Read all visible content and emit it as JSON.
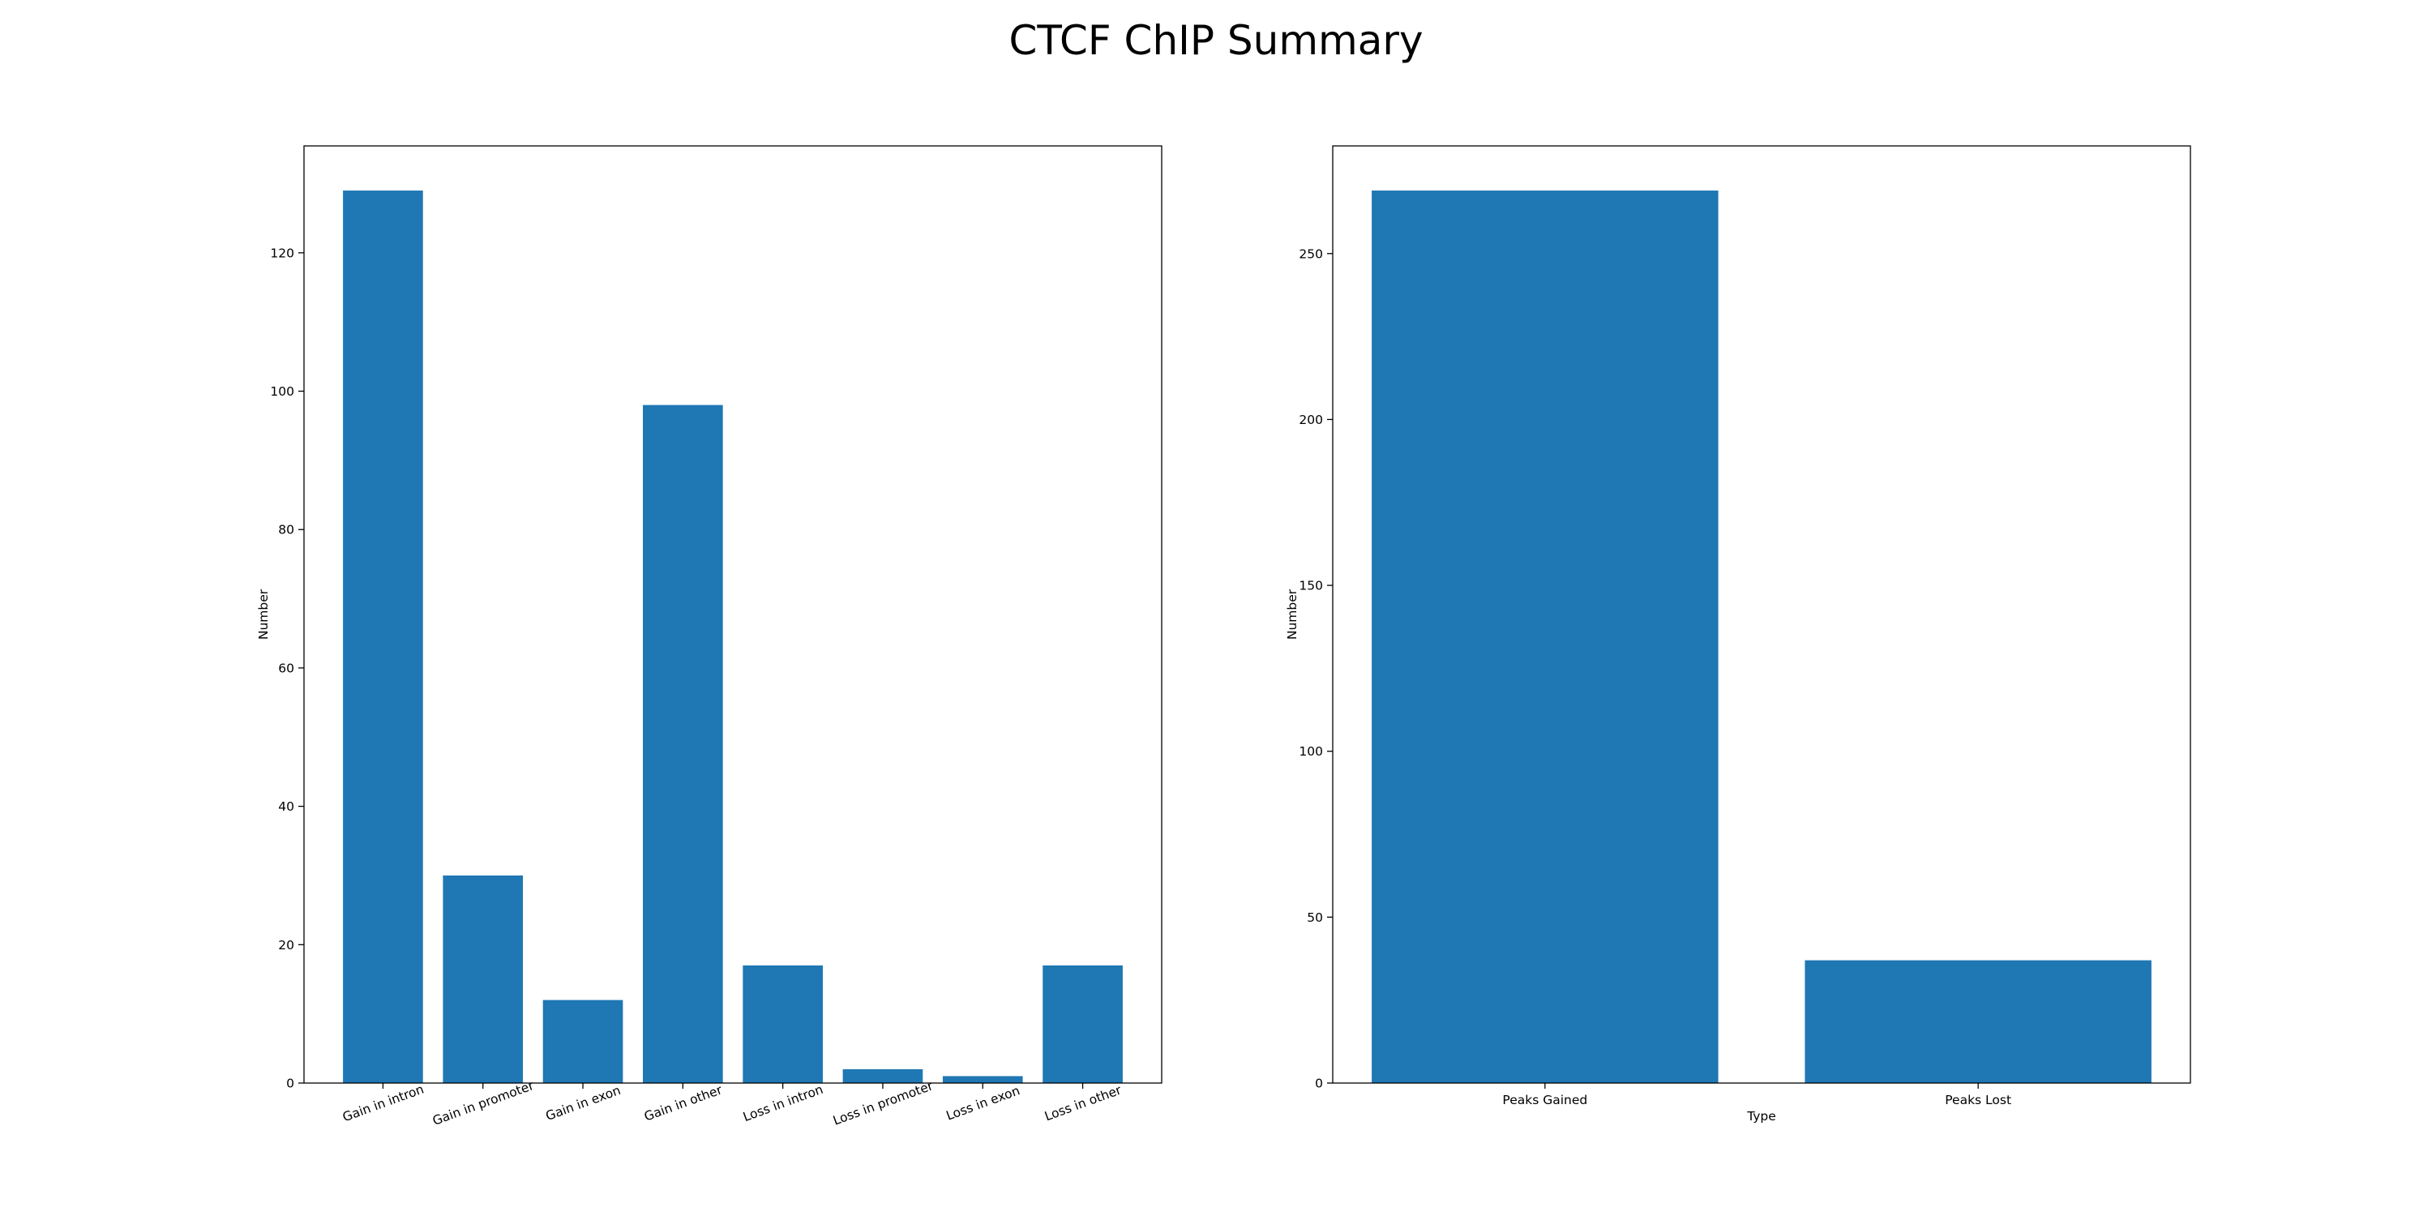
{
  "figure": {
    "title": "CTCF ChIP Summary",
    "bar_color": "#1f77b4"
  },
  "chart_data": [
    {
      "type": "bar",
      "title": "",
      "xlabel": "",
      "ylabel": "Number",
      "categories": [
        "Gain in intron",
        "Gain in promoter",
        "Gain in exon",
        "Gain in other",
        "Loss in intron",
        "Loss in promoter",
        "Loss in exon",
        "Loss in other"
      ],
      "values": [
        129,
        30,
        12,
        98,
        17,
        2,
        1,
        17
      ],
      "ylim": [
        0,
        135.45
      ],
      "yticks": [
        0,
        20,
        40,
        60,
        80,
        100,
        120
      ],
      "xtick_rotation": -20,
      "grid": false,
      "legend": "none"
    },
    {
      "type": "bar",
      "title": "",
      "xlabel": "Type",
      "ylabel": "Number",
      "categories": [
        "Peaks Gained",
        "Peaks Lost"
      ],
      "values": [
        269,
        37
      ],
      "ylim": [
        0,
        282.45
      ],
      "yticks": [
        0,
        50,
        100,
        150,
        200,
        250
      ],
      "xtick_rotation": 0,
      "grid": false,
      "legend": "none"
    }
  ]
}
